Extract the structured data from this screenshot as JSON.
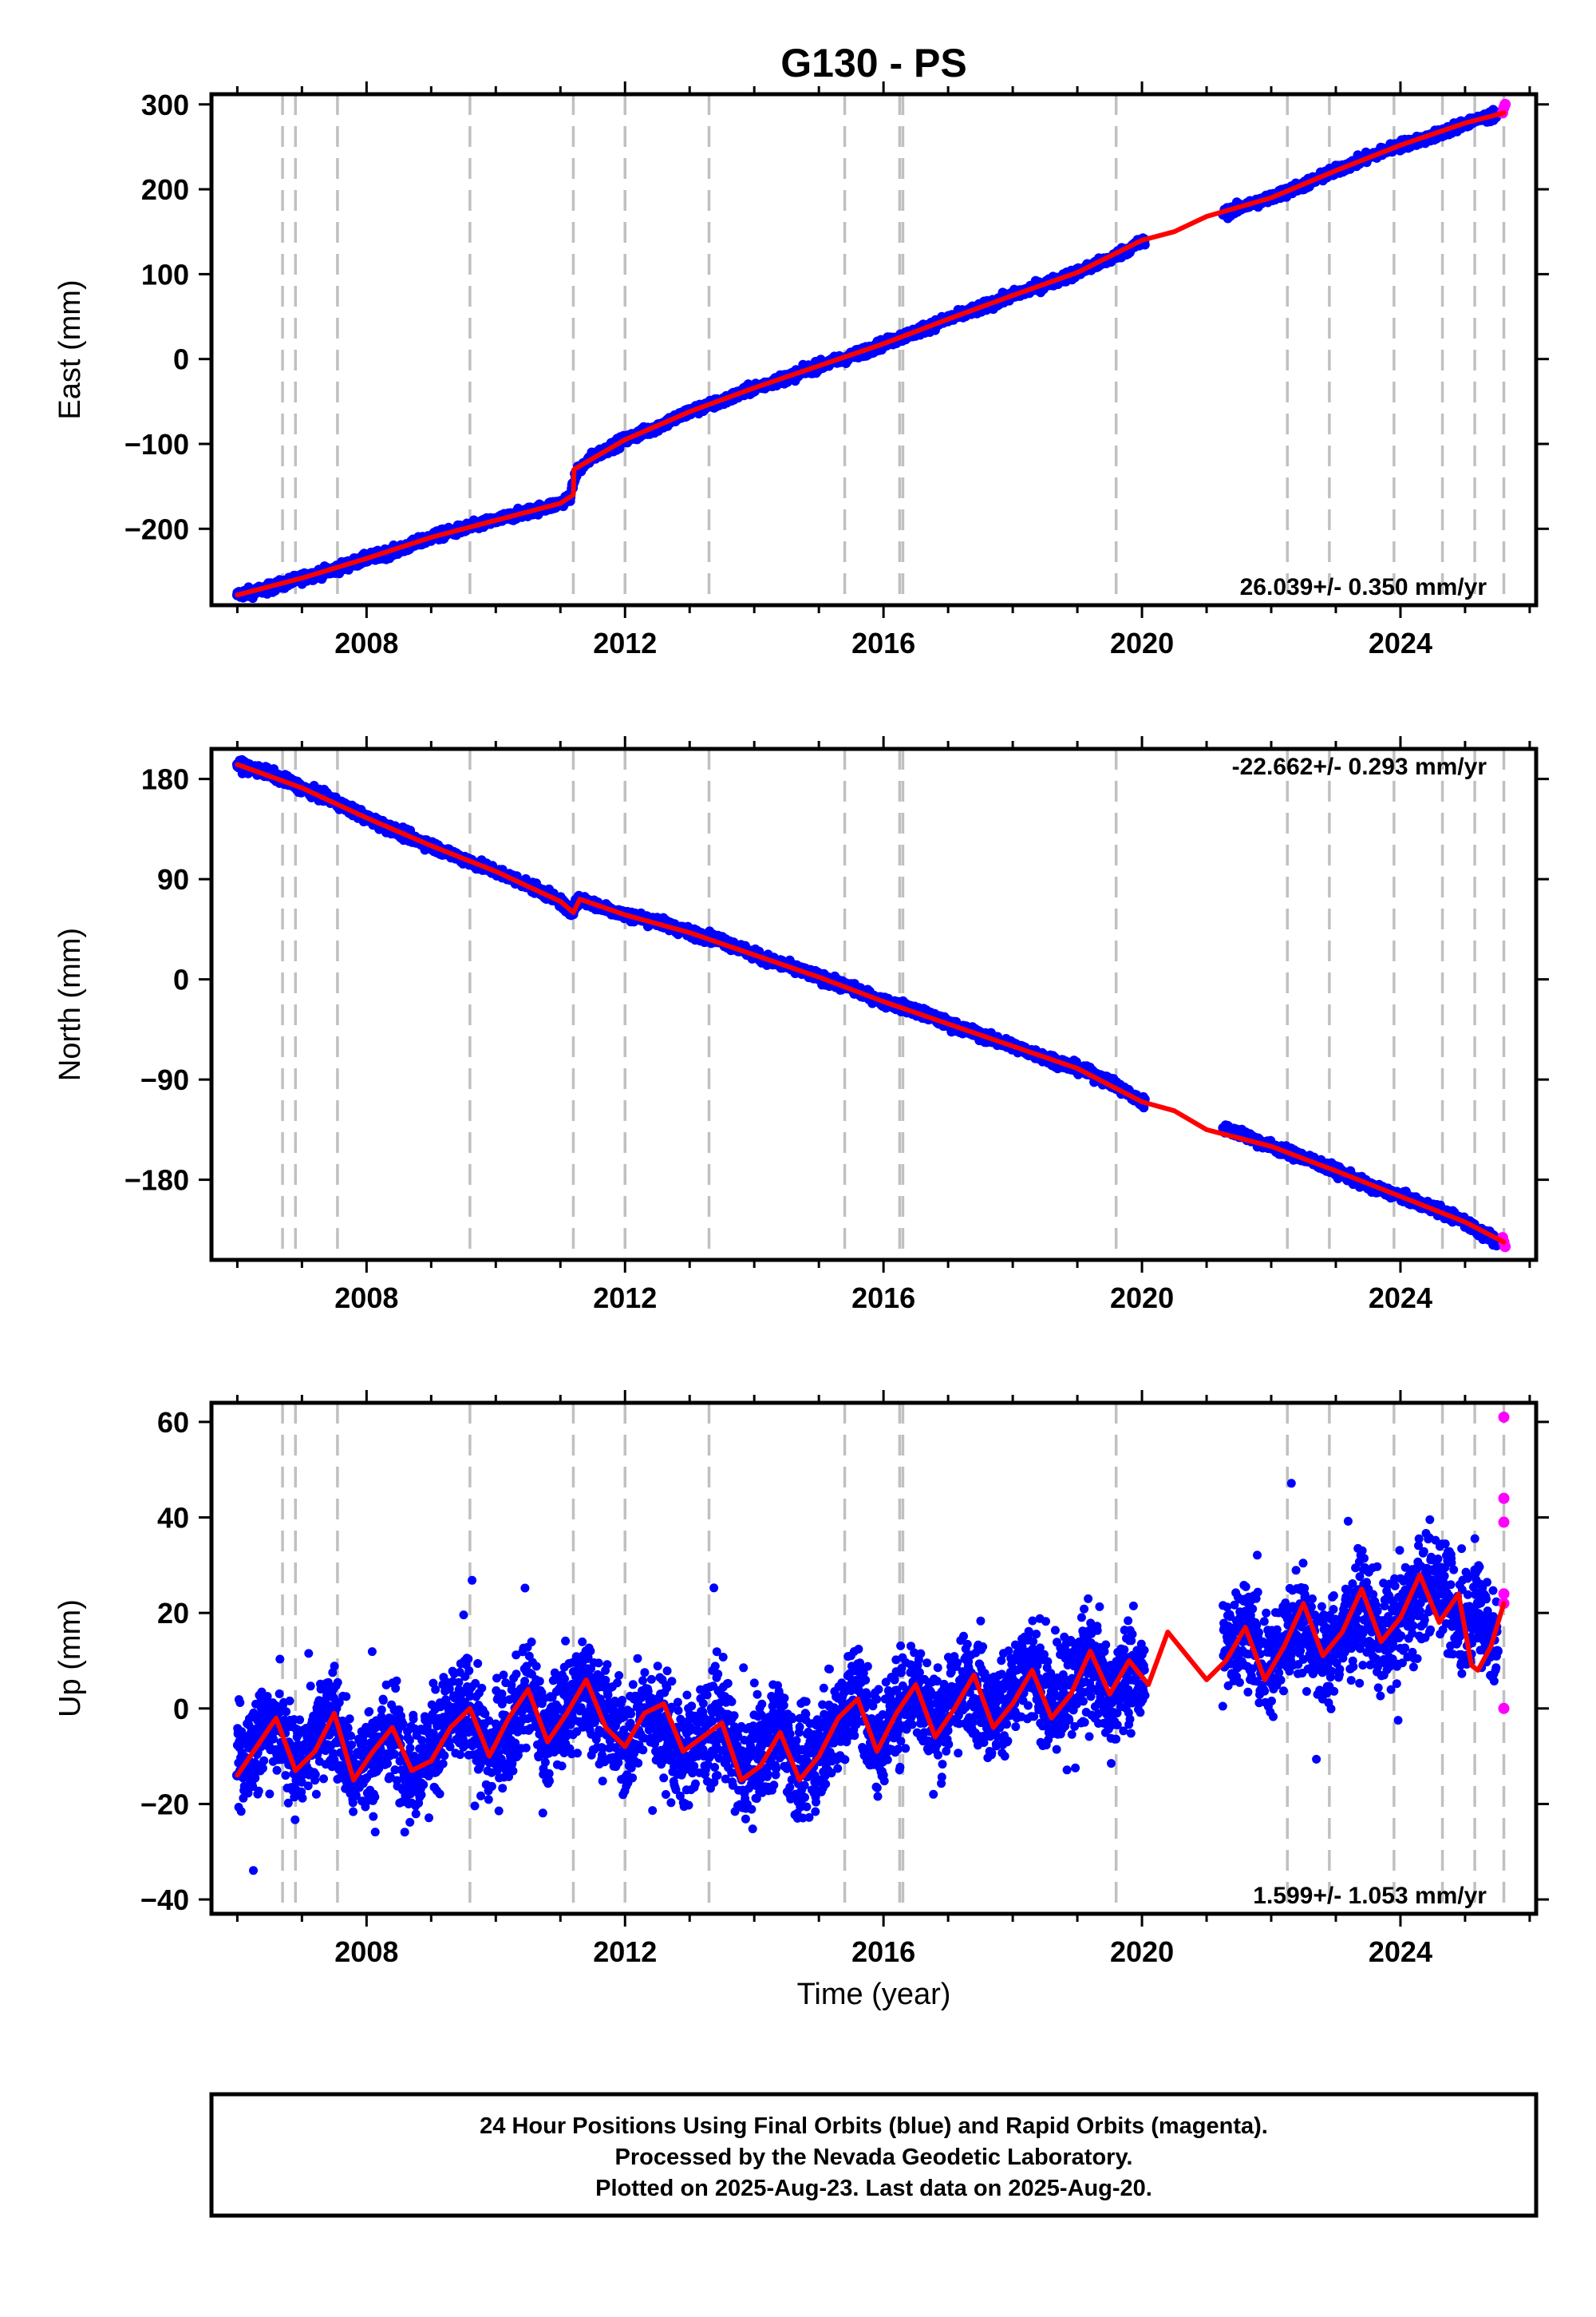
{
  "figure": {
    "title": "G130 - PS",
    "xlabel": "Time (year)",
    "footer": [
      "24 Hour Positions Using Final Orbits (blue) and Rapid Orbits (magenta).",
      "Processed by the Nevada Geodetic Laboratory.",
      "Plotted on 2025-Aug-23. Last data on 2025-Aug-20."
    ]
  },
  "colors": {
    "final_orbits": "#0000ff",
    "rapid_orbits": "#ff00ff",
    "model": "#ff0000",
    "event_lines": "#c0c0c0",
    "frame": "#000000"
  },
  "chart_data": [
    {
      "type": "scatter",
      "component": "East",
      "ylabel": "East (mm)",
      "rate_label": "26.039+/- 0.350 mm/yr",
      "xlim": [
        2005.6,
        2026.1
      ],
      "ylim": [
        -290,
        312
      ],
      "xticks": [
        2008,
        2012,
        2016,
        2020,
        2024
      ],
      "yticks": [
        -200,
        -100,
        0,
        100,
        200,
        300
      ],
      "series": [
        {
          "color": "#0000ff",
          "x": [
            2006.0,
            2006.5,
            2007.0,
            2007.5,
            2008.0,
            2008.5,
            2009.0,
            2009.5,
            2010.0,
            2010.5,
            2011.0,
            2011.15,
            2011.25,
            2011.5,
            2012.0,
            2012.5,
            2013.0,
            2013.5,
            2014.0,
            2014.5,
            2015.0,
            2015.5,
            2016.0,
            2016.5,
            2017.0,
            2017.5,
            2018.0,
            2018.5,
            2019.0,
            2019.5,
            2020.0,
            2021.3,
            2021.5,
            2022.0,
            2022.5,
            2023.0,
            2023.5,
            2024.0,
            2024.5,
            2025.0,
            2025.5
          ],
          "y": [
            -278,
            -270,
            -258,
            -248,
            -235,
            -225,
            -210,
            -200,
            -190,
            -180,
            -170,
            -162,
            -133,
            -115,
            -95,
            -80,
            -62,
            -50,
            -34,
            -22,
            -8,
            3,
            18,
            32,
            47,
            60,
            75,
            88,
            102,
            118,
            138,
            172,
            178,
            190,
            205,
            222,
            238,
            252,
            262,
            278,
            288
          ]
        },
        {
          "color": "#ff00ff",
          "x": [
            2025.58,
            2025.6,
            2025.62
          ],
          "y": [
            290,
            296,
            300
          ]
        }
      ],
      "model_x": [
        2006.0,
        2007.0,
        2008.0,
        2009.0,
        2010.0,
        2011.0,
        2011.2,
        2011.21,
        2012.0,
        2013.0,
        2014.0,
        2015.0,
        2016.0,
        2017.0,
        2018.0,
        2019.0,
        2020.0,
        2020.5,
        2021.0,
        2022.0,
        2023.0,
        2024.0,
        2025.0,
        2025.6
      ],
      "model_y": [
        -278,
        -258,
        -235,
        -210,
        -190,
        -170,
        -160,
        -130,
        -95,
        -62,
        -34,
        -8,
        18,
        47,
        75,
        102,
        140,
        150,
        168,
        190,
        222,
        252,
        278,
        290
      ],
      "event_lines": [
        2006.7,
        2006.9,
        2007.55,
        2009.6,
        2011.2,
        2012.0,
        2013.3,
        2015.4,
        2016.25,
        2016.3,
        2019.6,
        2022.25,
        2022.9,
        2023.9,
        2024.65,
        2025.15,
        2025.6
      ]
    },
    {
      "type": "scatter",
      "component": "North",
      "ylabel": "North (mm)",
      "rate_label": "-22.662+/- 0.293 mm/yr",
      "xlim": [
        2005.6,
        2026.1
      ],
      "ylim": [
        -252,
        207
      ],
      "xticks": [
        2008,
        2012,
        2016,
        2020,
        2024
      ],
      "yticks": [
        -180,
        -90,
        0,
        90,
        180
      ],
      "series": [
        {
          "color": "#0000ff",
          "x": [
            2006.0,
            2006.5,
            2007.0,
            2007.5,
            2008.0,
            2008.5,
            2009.0,
            2009.5,
            2010.0,
            2010.5,
            2011.0,
            2011.15,
            2011.3,
            2011.5,
            2012.0,
            2012.5,
            2013.0,
            2013.5,
            2014.0,
            2014.5,
            2015.0,
            2015.5,
            2016.0,
            2016.5,
            2017.0,
            2017.5,
            2018.0,
            2018.5,
            2019.0,
            2019.5,
            2020.0,
            2021.5,
            2022.0,
            2022.5,
            2023.0,
            2023.5,
            2024.0,
            2024.5,
            2025.0,
            2025.5
          ],
          "y": [
            193,
            185,
            172,
            160,
            145,
            132,
            120,
            108,
            97,
            85,
            70,
            60,
            72,
            68,
            58,
            52,
            42,
            35,
            22,
            12,
            2,
            -8,
            -20,
            -28,
            -40,
            -50,
            -60,
            -70,
            -80,
            -92,
            -110,
            -138,
            -150,
            -160,
            -172,
            -185,
            -195,
            -205,
            -218,
            -236
          ]
        },
        {
          "color": "#ff00ff",
          "x": [
            2025.58,
            2025.6,
            2025.62
          ],
          "y": [
            -232,
            -236,
            -240
          ]
        }
      ],
      "model_x": [
        2006.0,
        2007.0,
        2008.0,
        2009.0,
        2010.0,
        2011.0,
        2011.2,
        2011.3,
        2012.0,
        2013.0,
        2014.0,
        2015.0,
        2016.0,
        2017.0,
        2018.0,
        2019.0,
        2020.0,
        2020.5,
        2021.0,
        2022.0,
        2023.0,
        2024.0,
        2025.0,
        2025.6
      ],
      "model_y": [
        193,
        172,
        145,
        120,
        97,
        70,
        60,
        72,
        58,
        42,
        22,
        2,
        -20,
        -40,
        -60,
        -80,
        -110,
        -118,
        -135,
        -150,
        -172,
        -195,
        -218,
        -236
      ],
      "event_lines": [
        2006.7,
        2006.9,
        2007.55,
        2009.6,
        2011.2,
        2012.0,
        2013.3,
        2015.4,
        2016.25,
        2016.3,
        2019.6,
        2022.25,
        2022.9,
        2023.9,
        2024.65,
        2025.15,
        2025.6
      ]
    },
    {
      "type": "scatter",
      "component": "Up",
      "ylabel": "Up (mm)",
      "rate_label": "1.599+/- 1.053 mm/yr",
      "xlim": [
        2005.6,
        2026.1
      ],
      "ylim": [
        -43,
        64
      ],
      "xticks": [
        2008,
        2012,
        2016,
        2020,
        2024
      ],
      "yticks": [
        -40,
        -20,
        0,
        20,
        40,
        60
      ],
      "series": [
        {
          "color": "#0000ff",
          "x": [
            2006.0,
            2006.3,
            2006.6,
            2006.9,
            2007.2,
            2007.5,
            2007.8,
            2008.1,
            2008.4,
            2008.7,
            2009.0,
            2009.3,
            2009.6,
            2009.9,
            2010.2,
            2010.5,
            2010.8,
            2011.1,
            2011.4,
            2011.7,
            2012.0,
            2012.3,
            2012.6,
            2012.9,
            2013.2,
            2013.5,
            2013.8,
            2014.1,
            2014.4,
            2014.7,
            2015.0,
            2015.3,
            2015.6,
            2015.9,
            2016.2,
            2016.5,
            2016.8,
            2017.1,
            2017.4,
            2017.7,
            2018.0,
            2018.3,
            2018.6,
            2018.9,
            2019.2,
            2019.5,
            2019.8,
            2020.0,
            2021.3,
            2021.6,
            2021.9,
            2022.2,
            2022.5,
            2022.8,
            2023.1,
            2023.4,
            2023.7,
            2024.0,
            2024.3,
            2024.6,
            2024.9,
            2025.2,
            2025.5
          ],
          "y": [
            -14,
            -6,
            -2,
            -12,
            -6,
            -1,
            -14,
            -10,
            -4,
            -13,
            -8,
            -2,
            0,
            -10,
            -4,
            4,
            -6,
            0,
            5,
            -2,
            -8,
            0,
            -4,
            -11,
            -5,
            -2,
            -14,
            -8,
            -3,
            -14,
            -9,
            -2,
            4,
            -8,
            0,
            5,
            -4,
            2,
            6,
            -2,
            4,
            8,
            0,
            5,
            10,
            2,
            8,
            5,
            12,
            18,
            8,
            14,
            20,
            10,
            16,
            22,
            14,
            18,
            24,
            28,
            18,
            22,
            12
          ]
        },
        {
          "color": "#ff00ff",
          "x": [
            2025.6,
            2025.6,
            2025.6,
            2025.6,
            2025.6,
            2025.6
          ],
          "y": [
            61,
            44,
            39,
            24,
            22,
            0
          ]
        }
      ],
      "model_x": [
        2006.0,
        2006.3,
        2006.6,
        2006.9,
        2007.2,
        2007.5,
        2007.8,
        2008.1,
        2008.4,
        2008.7,
        2009.0,
        2009.3,
        2009.6,
        2009.9,
        2010.2,
        2010.5,
        2010.8,
        2011.1,
        2011.4,
        2011.7,
        2012.0,
        2012.3,
        2012.6,
        2012.9,
        2013.2,
        2013.5,
        2013.8,
        2014.1,
        2014.4,
        2014.7,
        2015.0,
        2015.3,
        2015.6,
        2015.9,
        2016.2,
        2016.5,
        2016.8,
        2017.1,
        2017.4,
        2017.7,
        2018.0,
        2018.3,
        2018.6,
        2018.9,
        2019.2,
        2019.5,
        2019.8,
        2020.1,
        2020.4,
        2020.7,
        2021.0,
        2021.3,
        2021.6,
        2021.9,
        2022.2,
        2022.5,
        2022.8,
        2023.1,
        2023.4,
        2023.7,
        2024.0,
        2024.3,
        2024.6,
        2024.9,
        2025.1,
        2025.2,
        2025.4,
        2025.6
      ],
      "model_y": [
        -14,
        -8,
        -2,
        -13,
        -9,
        -1,
        -15,
        -9,
        -4,
        -13,
        -11,
        -4,
        0,
        -10,
        -2,
        4,
        -7,
        -1,
        6,
        -4,
        -8,
        -1,
        1,
        -9,
        -6,
        -3,
        -15,
        -12,
        -5,
        -15,
        -10,
        -2,
        2,
        -9,
        -1,
        5,
        -6,
        0,
        7,
        -4,
        1,
        8,
        -2,
        3,
        12,
        3,
        10,
        5,
        16,
        11,
        6,
        10,
        17,
        6,
        13,
        22,
        11,
        16,
        25,
        14,
        19,
        28,
        18,
        24,
        9,
        8,
        13,
        22
      ],
      "event_lines": [
        2006.7,
        2006.9,
        2007.55,
        2009.6,
        2011.2,
        2012.0,
        2013.3,
        2015.4,
        2016.25,
        2016.3,
        2019.6,
        2022.25,
        2022.9,
        2023.9,
        2024.65,
        2025.15,
        2025.6
      ]
    }
  ]
}
